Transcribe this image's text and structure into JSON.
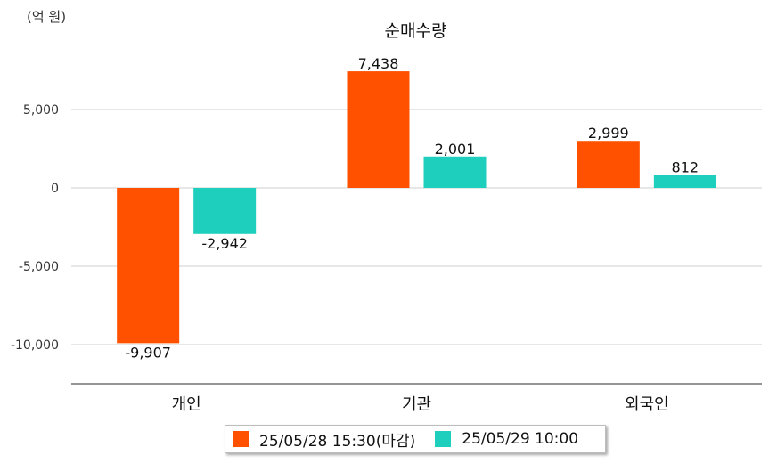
{
  "unit_label": "(억 원)",
  "chart_data": {
    "type": "bar",
    "title": "순매수량",
    "categories": [
      "개인",
      "기관",
      "외국인"
    ],
    "series": [
      {
        "name": "25/05/28 15:30(마감)",
        "color": "#ff5100",
        "values": [
          -9907,
          7438,
          2999
        ],
        "labels": [
          "-9,907",
          "7,438",
          "2,999"
        ]
      },
      {
        "name": "25/05/29 10:00",
        "color": "#1ecfbe",
        "values": [
          -2942,
          2001,
          812
        ],
        "labels": [
          "-2,942",
          "2,001",
          "812"
        ]
      }
    ],
    "yticks": [
      5000,
      0,
      -5000,
      -10000
    ],
    "ytick_labels": [
      "5,000",
      "0",
      "-5,000",
      "-10,000"
    ],
    "ylim": [
      -12500,
      10000
    ],
    "grid": true,
    "legend": "bottom"
  }
}
